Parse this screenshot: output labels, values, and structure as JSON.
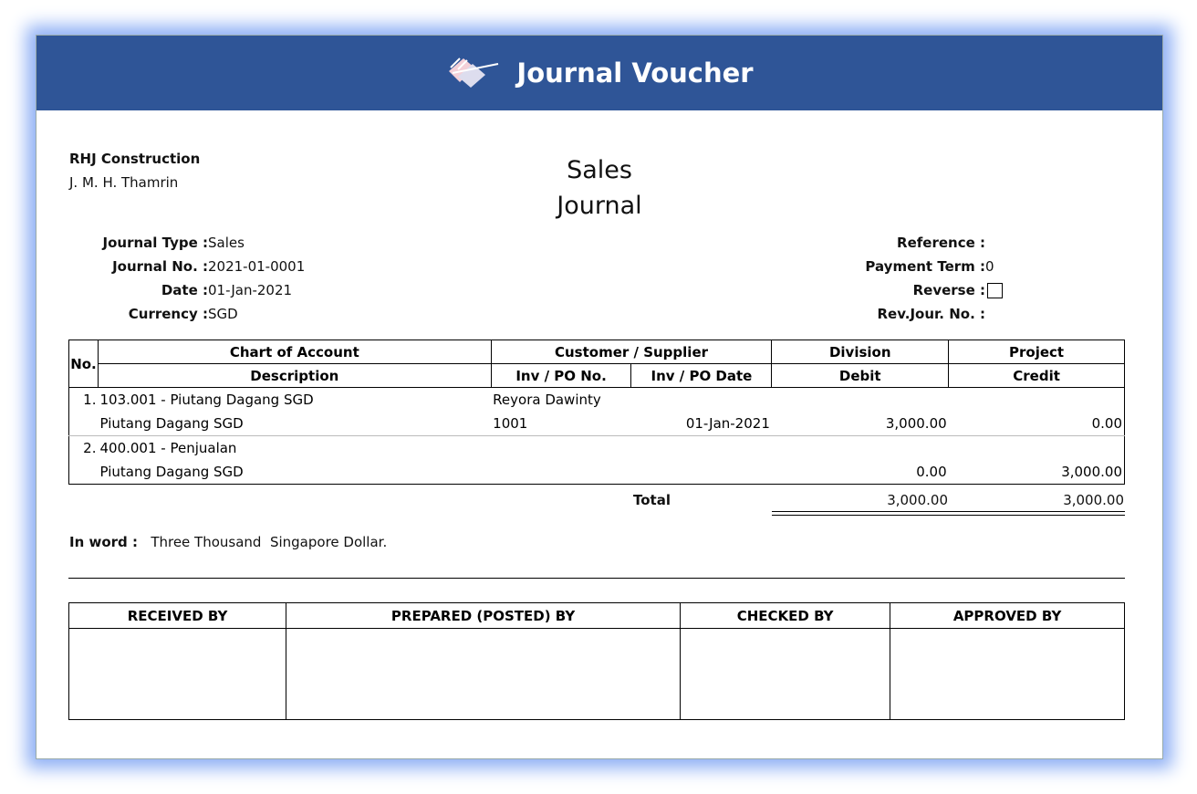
{
  "header": {
    "title": "Journal Voucher",
    "icon": "journal-icon"
  },
  "company": {
    "name": "RHJ Construction",
    "address": "J. M. H. Thamrin"
  },
  "doc_title": [
    "Sales",
    "Journal"
  ],
  "left_fields": [
    {
      "label": "Journal Type :",
      "value": "Sales"
    },
    {
      "label": "Journal No. :",
      "value": "2021-01-0001"
    },
    {
      "label": "Date :",
      "value": "01-Jan-2021"
    },
    {
      "label": "Currency :",
      "value": "SGD"
    }
  ],
  "right_fields": [
    {
      "label": "Reference :",
      "value": ""
    },
    {
      "label": "Payment Term :",
      "value": "0"
    },
    {
      "label": "Reverse :",
      "checked": false
    },
    {
      "label": "Rev.Jour. No. :",
      "value": ""
    }
  ],
  "table": {
    "headers": {
      "no": "No.",
      "chart": "Chart of Account",
      "customer": "Customer / Supplier",
      "division": "Division",
      "project": "Project",
      "description": "Description",
      "inv_no": "Inv / PO No.",
      "inv_date": "Inv / PO Date",
      "debit": "Debit",
      "credit": "Credit"
    },
    "rows": [
      {
        "no": "1.",
        "account": "103.001 - Piutang Dagang SGD",
        "customer": "Reyora Dawinty",
        "description": "Piutang Dagang SGD",
        "inv_no": "1001",
        "inv_date": "01-Jan-2021",
        "debit": "3,000.00",
        "credit": "0.00"
      },
      {
        "no": "2.",
        "account": "400.001 - Penjualan",
        "customer": "",
        "description": "Piutang Dagang SGD",
        "inv_no": "",
        "inv_date": "",
        "debit": "0.00",
        "credit": "3,000.00"
      }
    ],
    "total_label": "Total",
    "total_debit": "3,000.00",
    "total_credit": "3,000.00"
  },
  "in_word": {
    "label": "In word :",
    "value": "Three Thousand  Singapore Dollar."
  },
  "signatures": [
    "RECEIVED BY",
    "PREPARED (POSTED) BY",
    "CHECKED BY",
    "APPROVED BY"
  ]
}
